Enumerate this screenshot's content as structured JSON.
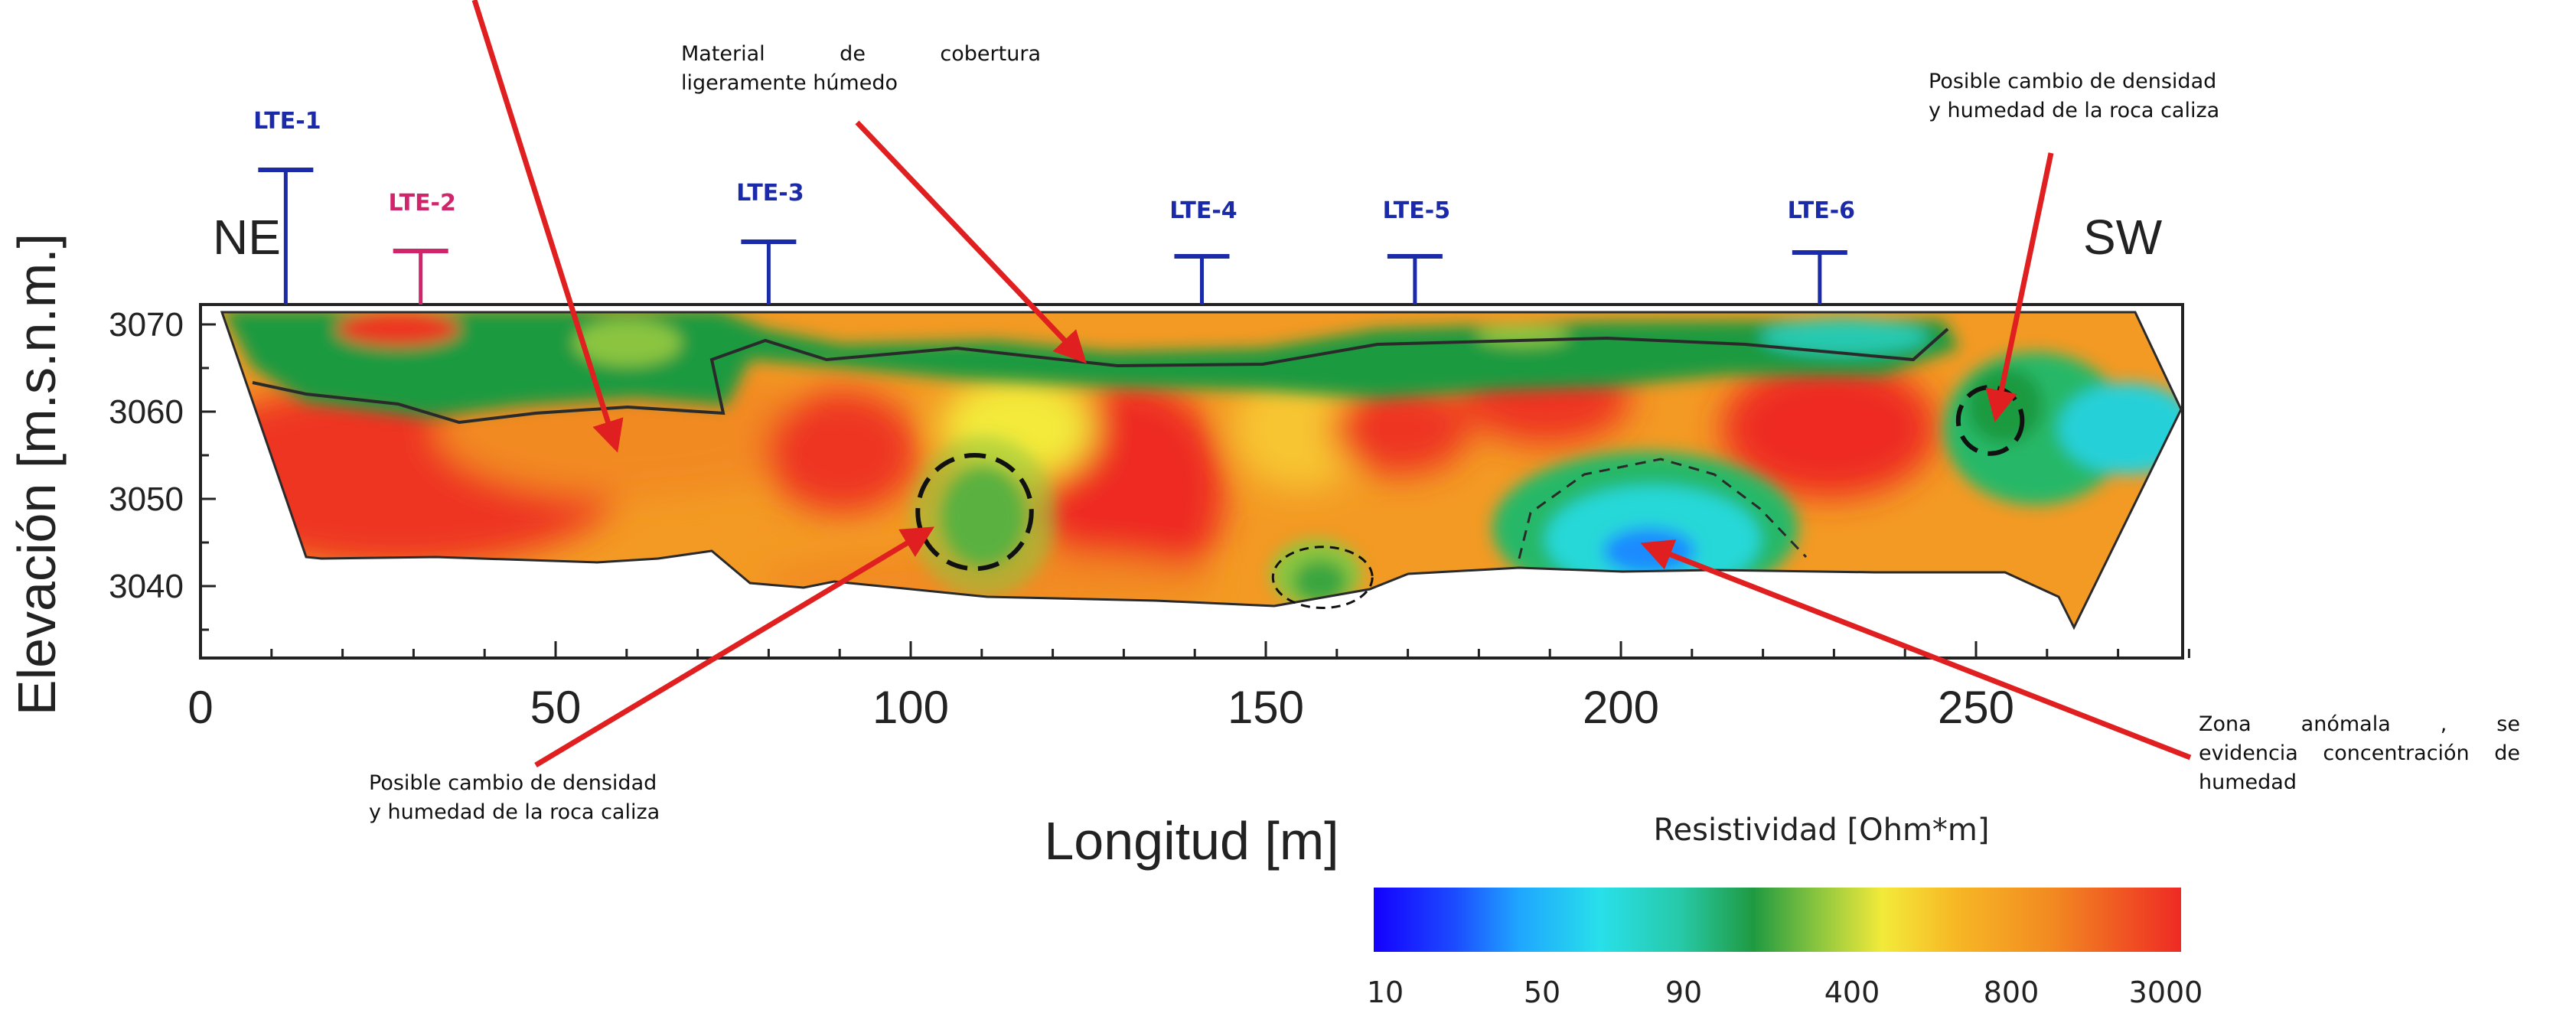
{
  "chart_data": {
    "type": "heatmap",
    "title": "",
    "xlabel": "Longitud [m]",
    "ylabel": "Elevación [m.s.n.m.]",
    "xlim": [
      0,
      280
    ],
    "ylim": [
      3033,
      3073
    ],
    "x_ticks": [
      0,
      50,
      100,
      150,
      200,
      250
    ],
    "y_ticks": [
      3040,
      3050,
      3060,
      3070
    ],
    "direction_left": "NE",
    "direction_right": "SW",
    "colorbar": {
      "title": "Resistividad [Ohm*m]",
      "tick_labels": [
        "10",
        "50",
        "90",
        "400",
        "800",
        "3000"
      ],
      "colors": [
        "#1400ff",
        "#1c4bff",
        "#1fa6ff",
        "#28e0ea",
        "#27c9a8",
        "#1f9a41",
        "#8bc53f",
        "#f3ea3a",
        "#f7b825",
        "#f28a21",
        "#ee2a24"
      ]
    },
    "lines": [
      {
        "name": "LTE-1",
        "x": 12,
        "color": "#1a2aa8"
      },
      {
        "name": "LTE-2",
        "x": 31,
        "color": "#d0256b"
      },
      {
        "name": "LTE-3",
        "x": 80,
        "color": "#1a2aa8"
      },
      {
        "name": "LTE-4",
        "x": 141,
        "color": "#1a2aa8"
      },
      {
        "name": "LTE-5",
        "x": 171,
        "color": "#1a2aa8"
      },
      {
        "name": "LTE-6",
        "x": 228,
        "color": "#1a2aa8"
      }
    ],
    "anomalies": [
      {
        "x": 109,
        "y": 3048.5,
        "rx": 8,
        "ry": 6.5
      },
      {
        "x": 158,
        "y": 3041,
        "rx": 7,
        "ry": 3.5
      },
      {
        "x": 252,
        "y": 3059,
        "rx": 4.5,
        "ry": 3.8
      }
    ]
  },
  "annotations": {
    "cover": [
      "Material de cobertura",
      "ligeramente húmedo"
    ],
    "density_top": [
      "Posible cambio de densidad",
      "y humedad de la roca caliza"
    ],
    "density_bottom": [
      "Posible cambio de densidad",
      "y humedad de la roca caliza"
    ],
    "anomaly_zone": [
      "Zona anómala , se",
      "evidencia concentración de",
      "humedad"
    ]
  },
  "colors": {
    "arrow": "#e02020",
    "axis": "#222222",
    "line_blue": "#1a2aa8",
    "line_pink": "#d0256b"
  }
}
